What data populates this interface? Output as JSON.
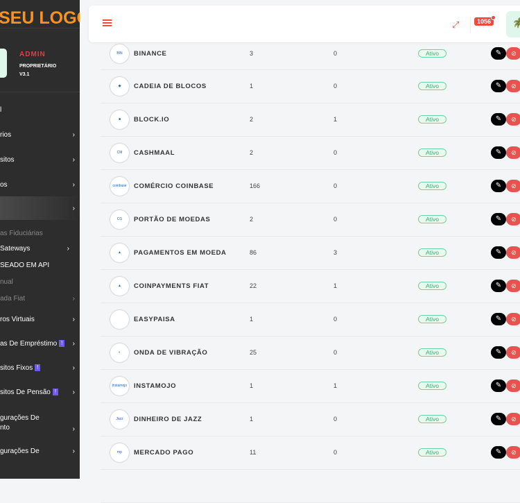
{
  "sidebar": {
    "logo": "SEU LOGO",
    "user": {
      "role": "ADMIN",
      "title": "PROPRIETÁRIO",
      "version": "V3.1"
    },
    "items": [
      {
        "label": "l",
        "chevron": false,
        "style": "normal"
      },
      {
        "label": "rios",
        "chevron": true,
        "style": "normal"
      },
      {
        "label": "sitos",
        "chevron": true,
        "style": "normal"
      },
      {
        "label": "os",
        "chevron": true,
        "style": "normal"
      },
      {
        "label": "",
        "chevron": true,
        "style": "active"
      },
      {
        "label": "as Fiduciárias",
        "chevron": false,
        "style": "dim"
      },
      {
        "label": "Sateways",
        "chevron": true,
        "style": "sub"
      },
      {
        "label": "SEADO EM API",
        "chevron": false,
        "style": "sub"
      },
      {
        "label": "nual",
        "chevron": false,
        "style": "dim"
      },
      {
        "label": "ada Fiat",
        "chevron": true,
        "style": "dim"
      },
      {
        "label": "ros Virtuais",
        "chevron": true,
        "style": "normal"
      },
      {
        "label": "as De Empréstimo",
        "chevron": true,
        "style": "normal",
        "badge": "!"
      },
      {
        "label": "sitos Fixos",
        "chevron": true,
        "style": "normal",
        "badge": "!"
      },
      {
        "label": "sitos De Pensão",
        "chevron": true,
        "style": "normal",
        "badge": "!"
      },
      {
        "label": "gurações De\nnto",
        "chevron": true,
        "style": "normal"
      },
      {
        "label": "gurações De",
        "chevron": true,
        "style": "normal"
      }
    ]
  },
  "header": {
    "notification_count": "1056",
    "menu_icon": "hamburger-icon",
    "expand_icon": "expand-icon"
  },
  "colors": {
    "accent": "#f04a3a",
    "logo": "#f7931e",
    "active_status": "#2fb36a"
  },
  "gateways": [
    {
      "name": "BINANCE",
      "c1": "3",
      "c2": "0",
      "status": "Ativo",
      "logo": "BIN"
    },
    {
      "name": "CADEIA DE BLOCOS",
      "c1": "1",
      "c2": "0",
      "status": "Ativo",
      "logo": "◆"
    },
    {
      "name": "BLOCK.IO",
      "c1": "2",
      "c2": "1",
      "status": "Ativo",
      "logo": "■"
    },
    {
      "name": "CASHMAAL",
      "c1": "2",
      "c2": "0",
      "status": "Ativo",
      "logo": "CM"
    },
    {
      "name": "COMÉRCIO COINBASE",
      "c1": "166",
      "c2": "0",
      "status": "Ativo",
      "logo": "coinbase"
    },
    {
      "name": "PORTÃO DE MOEDAS",
      "c1": "2",
      "c2": "0",
      "status": "Ativo",
      "logo": "CG"
    },
    {
      "name": "PAGAMENTOS EM MOEDA",
      "c1": "86",
      "c2": "3",
      "status": "Ativo",
      "logo": "▲"
    },
    {
      "name": "COINPAYMENTS FIAT",
      "c1": "22",
      "c2": "1",
      "status": "Ativo",
      "logo": "▲"
    },
    {
      "name": "EASYPAISA",
      "c1": "1",
      "c2": "0",
      "status": "Ativo",
      "logo": ""
    },
    {
      "name": "ONDA DE VIBRAÇÃO",
      "c1": "25",
      "c2": "0",
      "status": "Ativo",
      "logo": "◐"
    },
    {
      "name": "INSTAMOJO",
      "c1": "1",
      "c2": "1",
      "status": "Ativo",
      "logo": "instamojo"
    },
    {
      "name": "DINHEIRO DE JAZZ",
      "c1": "1",
      "c2": "0",
      "status": "Ativo",
      "logo": "Jazz"
    },
    {
      "name": "MERCADO PAGO",
      "c1": "11",
      "c2": "0",
      "status": "Ativo",
      "logo": "mp"
    },
    {
      "name": "",
      "c1": "",
      "c2": "",
      "status": "",
      "logo": ""
    }
  ]
}
